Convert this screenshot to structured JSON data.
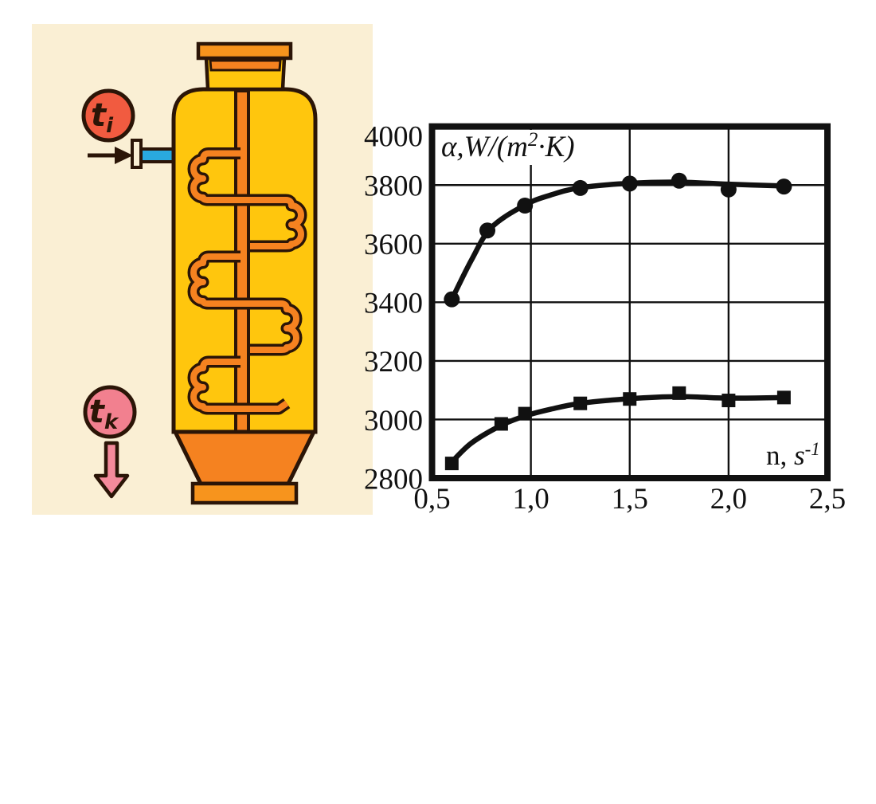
{
  "page": {
    "background": "#ffffff"
  },
  "diagram": {
    "description": "vertical crystallizer vessel with internal scraper agitator, feed inlet and product outlet",
    "panel_bg": "#FAEFD4",
    "colors": {
      "vessel_yellow": "#FFC60D",
      "agitator_orange": "#F58220",
      "flange_orange": "#F7941D",
      "outline_dark": "#2B1507",
      "inlet_pipe_blue": "#29A9DF",
      "inlet_badge_red": "#F15B40",
      "outlet_badge_pink": "#F2808F",
      "outlet_arrow_pink": "#F48A9B"
    },
    "labels": {
      "inlet": {
        "main": "t",
        "sub": "i"
      },
      "outlet": {
        "main": "t",
        "sub": "k"
      }
    }
  },
  "chart_data": {
    "type": "line",
    "title": "",
    "ylabel": "α,W/(m²·K)",
    "ylabel_parts": {
      "prefix": "α,",
      "main": "W/(m",
      "sup": "2",
      "suffix": "·K)"
    },
    "xlabel": "n, s⁻¹",
    "xlabel_parts": {
      "prefix": "n, ",
      "main": "s",
      "sup": "-1"
    },
    "xlim": [
      0.5,
      2.5
    ],
    "ylim": [
      2800,
      4000
    ],
    "grid": true,
    "legend": "none",
    "axis_color": "#111111",
    "xticks": {
      "values": [
        0.5,
        1.0,
        1.5,
        2.0,
        2.5
      ],
      "labels": [
        "0,5",
        "1,0",
        "1,5",
        "2,0",
        "2,5"
      ]
    },
    "yticks": {
      "values": [
        4000,
        3800,
        3600,
        3400,
        3200,
        3000,
        2800
      ],
      "labels": [
        "4000",
        "3800",
        "3600",
        "3400",
        "3200",
        "3000",
        "2800"
      ]
    },
    "series": [
      {
        "name": "upper-curve",
        "marker": "circle",
        "x": [
          0.6,
          0.78,
          0.97,
          1.25,
          1.5,
          1.75,
          2.0,
          2.28
        ],
        "y": [
          3410,
          3645,
          3730,
          3790,
          3805,
          3815,
          3785,
          3795
        ],
        "curve_x": [
          0.6,
          0.7,
          0.8,
          0.97,
          1.1,
          1.25,
          1.5,
          1.75,
          2.0,
          2.28
        ],
        "curve_y": [
          3410,
          3545,
          3655,
          3732,
          3766,
          3791,
          3806,
          3810,
          3803,
          3797
        ]
      },
      {
        "name": "lower-curve",
        "marker": "square",
        "x": [
          0.6,
          0.85,
          0.97,
          1.25,
          1.5,
          1.75,
          2.0,
          2.28
        ],
        "y": [
          2850,
          2985,
          3020,
          3055,
          3070,
          3090,
          3065,
          3075
        ],
        "curve_x": [
          0.6,
          0.7,
          0.85,
          0.97,
          1.1,
          1.25,
          1.5,
          1.75,
          2.0,
          2.28
        ],
        "curve_y": [
          2855,
          2920,
          2980,
          3012,
          3035,
          3055,
          3071,
          3078,
          3073,
          3075
        ]
      }
    ]
  }
}
